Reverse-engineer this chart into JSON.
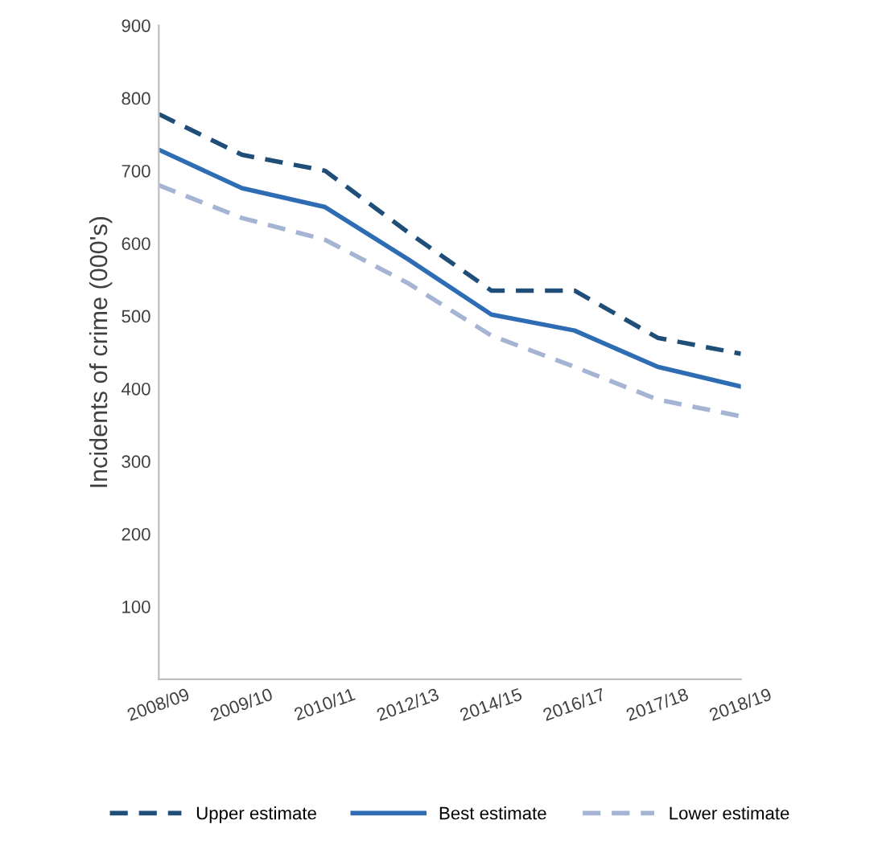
{
  "chart_data": {
    "type": "line",
    "ylabel": "Incidents of crime (000's)",
    "categories": [
      "2008/09",
      "2009/10",
      "2010/11",
      "2012/13",
      "2014/15",
      "2016/17",
      "2017/18",
      "2018/19"
    ],
    "ylim": [
      0,
      900
    ],
    "yticks": [
      100,
      200,
      300,
      400,
      500,
      600,
      700,
      800,
      900
    ],
    "grid": false,
    "legend": "bottom",
    "marker": "none",
    "series": [
      {
        "name": "Upper estimate",
        "color": "#1f4e79",
        "line_style": "dashed",
        "values": [
          778,
          722,
          700,
          615,
          535,
          535,
          470,
          448
        ]
      },
      {
        "name": "Best estimate",
        "color": "#2e6db4",
        "line_style": "solid",
        "values": [
          729,
          676,
          650,
          578,
          502,
          480,
          430,
          403
        ]
      },
      {
        "name": "Lower estimate",
        "color": "#a6b4d4",
        "line_style": "dashed",
        "values": [
          680,
          635,
          605,
          545,
          473,
          430,
          385,
          362
        ]
      }
    ]
  }
}
